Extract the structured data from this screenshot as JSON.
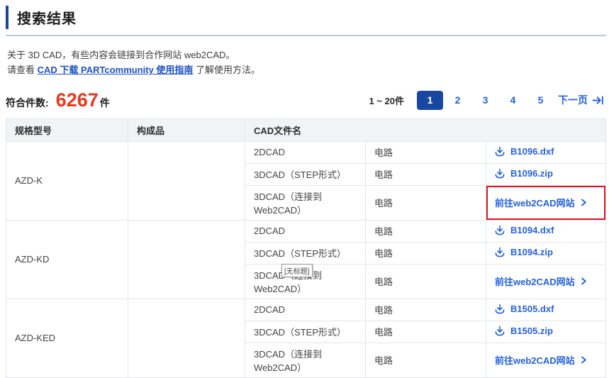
{
  "header": {
    "title": "搜索结果"
  },
  "intro": {
    "line1": "关于 3D CAD，有些内容会链接到合作网站 web2CAD。",
    "line2_prefix": "请查看 ",
    "link_label": "CAD 下载 PARTcommunity 使用指南",
    "line2_suffix": " 了解使用方法。"
  },
  "results": {
    "count_label": "符合件数:",
    "count_value": "6267",
    "count_unit": "件"
  },
  "pagination": {
    "range_label": "1 ~ 20件",
    "pages": [
      {
        "label": "1",
        "active": true
      },
      {
        "label": "2",
        "active": false
      },
      {
        "label": "3",
        "active": false
      },
      {
        "label": "4",
        "active": false
      },
      {
        "label": "5",
        "active": false
      }
    ],
    "next_label": "下一页",
    "last_page_icon": "arrow-to-bar-icon"
  },
  "table": {
    "headers": {
      "model": "规格型号",
      "component": "构成品",
      "cad_file": "CAD文件名"
    },
    "groups": [
      {
        "model": "AZD-K",
        "component": "",
        "rows": [
          {
            "type": "2DCAD",
            "category": "电路",
            "link_kind": "download",
            "link_label": "B1096.dxf",
            "highlighted": false
          },
          {
            "type": "3DCAD（STEP形式）",
            "category": "电路",
            "link_kind": "download",
            "link_label": "B1096.zip",
            "highlighted": false
          },
          {
            "type": "3DCAD（连接到Web2CAD）",
            "category": "电路",
            "link_kind": "external",
            "link_label": "前往web2CAD网站",
            "highlighted": true
          }
        ]
      },
      {
        "model": "AZD-KD",
        "component": "",
        "rows": [
          {
            "type": "2DCAD",
            "category": "电路",
            "link_kind": "download",
            "link_label": "B1094.dxf",
            "highlighted": false
          },
          {
            "type": "3DCAD（STEP形式）",
            "category": "电路",
            "link_kind": "download",
            "link_label": "B1094.zip",
            "highlighted": false
          },
          {
            "type": "3DCAD（连接到Web2CAD）",
            "category": "电路",
            "link_kind": "external",
            "link_label": "前往web2CAD网站",
            "highlighted": false
          }
        ]
      },
      {
        "model": "AZD-KED",
        "component": "",
        "rows": [
          {
            "type": "2DCAD",
            "category": "电路",
            "link_kind": "download",
            "link_label": "B1505.dxf",
            "highlighted": false
          },
          {
            "type": "3DCAD（STEP形式）",
            "category": "电路",
            "link_kind": "download",
            "link_label": "B1505.zip",
            "highlighted": false
          },
          {
            "type": "3DCAD（连接到Web2CAD）",
            "category": "电路",
            "link_kind": "external",
            "link_label": "前往web2CAD网站",
            "highlighted": false
          }
        ]
      }
    ]
  },
  "tooltip": {
    "text": "[无标题]"
  },
  "colors": {
    "accent_navy": "#17479e",
    "link_blue": "#2361dd",
    "count_red": "#e8391d",
    "highlight_red": "#e8111c",
    "table_border": "#e4e6ea",
    "header_bg": "#f2f3f6"
  }
}
